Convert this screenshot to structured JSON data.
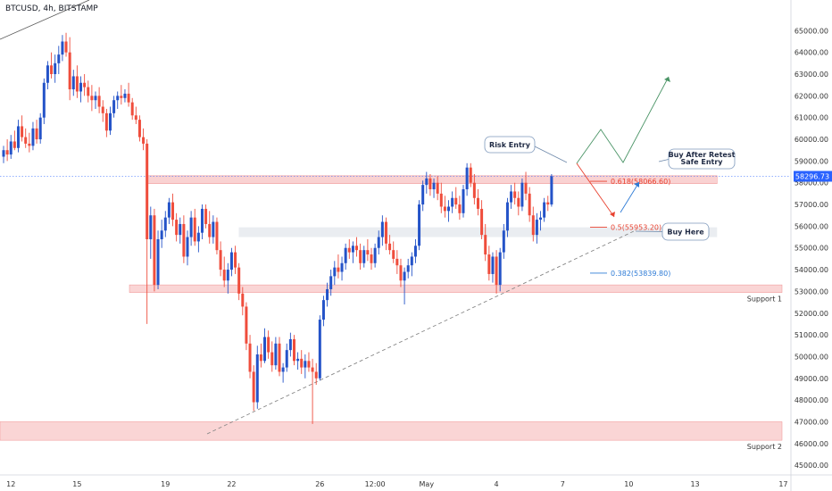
{
  "chart_data": {
    "type": "candlestick",
    "title": "BTCUSD, 4h, BITSTAMP",
    "ylim": [
      44800,
      66000
    ],
    "y_ticks": [
      45000,
      46000,
      47000,
      48000,
      49000,
      50000,
      51000,
      52000,
      53000,
      54000,
      55000,
      56000,
      57000,
      58000,
      59000,
      60000,
      61000,
      62000,
      63000,
      64000,
      65000
    ],
    "y_tick_labels": [
      "45000.00",
      "46000.00",
      "47000.00",
      "48000.00",
      "49000.00",
      "50000.00",
      "51000.00",
      "52000.00",
      "53000.00",
      "54000.00",
      "55000.00",
      "56000.00",
      "57000.00",
      "58000.00",
      "59000.00",
      "60000.00",
      "61000.00",
      "62000.00",
      "63000.00",
      "64000.00",
      "65000.00"
    ],
    "x_ticks": [
      {
        "label": "12",
        "bar": 2
      },
      {
        "label": "15",
        "bar": 20
      },
      {
        "label": "19",
        "bar": 44
      },
      {
        "label": "22",
        "bar": 62
      },
      {
        "label": "26",
        "bar": 86
      },
      {
        "label": "12:00",
        "bar": 101
      },
      {
        "label": "May",
        "bar": 115
      },
      {
        "label": "4",
        "bar": 134
      },
      {
        "label": "7",
        "bar": 152
      },
      {
        "label": "10",
        "bar": 170
      },
      {
        "label": "13",
        "bar": 188
      },
      {
        "label": "17",
        "bar": 212
      }
    ],
    "x_range": [
      0,
      220
    ],
    "current_price": {
      "value": 58296.73,
      "label": "58296.73"
    },
    "candles": [
      {
        "o": 59200,
        "h": 59700,
        "l": 58900,
        "c": 59500
      },
      {
        "o": 59500,
        "h": 60000,
        "l": 59000,
        "c": 59300
      },
      {
        "o": 59300,
        "h": 60200,
        "l": 59100,
        "c": 59900
      },
      {
        "o": 59900,
        "h": 60400,
        "l": 59500,
        "c": 59600
      },
      {
        "o": 59600,
        "h": 60900,
        "l": 59400,
        "c": 60600
      },
      {
        "o": 60600,
        "h": 61100,
        "l": 59900,
        "c": 60100
      },
      {
        "o": 60100,
        "h": 60500,
        "l": 59600,
        "c": 59800
      },
      {
        "o": 59800,
        "h": 60300,
        "l": 59400,
        "c": 59700
      },
      {
        "o": 59700,
        "h": 60800,
        "l": 59500,
        "c": 60500
      },
      {
        "o": 60500,
        "h": 60900,
        "l": 59800,
        "c": 60000
      },
      {
        "o": 60000,
        "h": 61200,
        "l": 59800,
        "c": 61000
      },
      {
        "o": 61000,
        "h": 62800,
        "l": 60700,
        "c": 62600
      },
      {
        "o": 62600,
        "h": 63600,
        "l": 62300,
        "c": 63400
      },
      {
        "o": 63400,
        "h": 64000,
        "l": 62800,
        "c": 63000
      },
      {
        "o": 63000,
        "h": 63900,
        "l": 62600,
        "c": 63500
      },
      {
        "o": 63500,
        "h": 64300,
        "l": 63000,
        "c": 63900
      },
      {
        "o": 63900,
        "h": 64800,
        "l": 63600,
        "c": 64500
      },
      {
        "o": 64500,
        "h": 64900,
        "l": 63800,
        "c": 64000
      },
      {
        "o": 64000,
        "h": 64700,
        "l": 61800,
        "c": 62300
      },
      {
        "o": 62300,
        "h": 63200,
        "l": 62000,
        "c": 62900
      },
      {
        "o": 62900,
        "h": 63400,
        "l": 61900,
        "c": 62200
      },
      {
        "o": 62200,
        "h": 62900,
        "l": 61700,
        "c": 62600
      },
      {
        "o": 62600,
        "h": 63000,
        "l": 62000,
        "c": 62400
      },
      {
        "o": 62400,
        "h": 62700,
        "l": 61700,
        "c": 62000
      },
      {
        "o": 62000,
        "h": 62500,
        "l": 61300,
        "c": 61800
      },
      {
        "o": 61800,
        "h": 62200,
        "l": 61400,
        "c": 62000
      },
      {
        "o": 62000,
        "h": 62400,
        "l": 61200,
        "c": 61500
      },
      {
        "o": 61500,
        "h": 61800,
        "l": 60800,
        "c": 61200
      },
      {
        "o": 61200,
        "h": 61400,
        "l": 60100,
        "c": 60400
      },
      {
        "o": 60400,
        "h": 61500,
        "l": 60200,
        "c": 61200
      },
      {
        "o": 61200,
        "h": 62000,
        "l": 61000,
        "c": 61800
      },
      {
        "o": 61800,
        "h": 62200,
        "l": 61400,
        "c": 62000
      },
      {
        "o": 62000,
        "h": 62500,
        "l": 61600,
        "c": 61900
      },
      {
        "o": 61900,
        "h": 62300,
        "l": 61700,
        "c": 62100
      },
      {
        "o": 62100,
        "h": 62600,
        "l": 61500,
        "c": 61700
      },
      {
        "o": 61700,
        "h": 61900,
        "l": 60900,
        "c": 61100
      },
      {
        "o": 61100,
        "h": 61500,
        "l": 60700,
        "c": 60900
      },
      {
        "o": 60900,
        "h": 61100,
        "l": 59900,
        "c": 60100
      },
      {
        "o": 60100,
        "h": 60500,
        "l": 59500,
        "c": 59800
      },
      {
        "o": 59800,
        "h": 60000,
        "l": 51500,
        "c": 55400
      },
      {
        "o": 55400,
        "h": 56900,
        "l": 54500,
        "c": 56500
      },
      {
        "o": 56500,
        "h": 56800,
        "l": 53000,
        "c": 53300
      },
      {
        "o": 53300,
        "h": 55800,
        "l": 53100,
        "c": 55400
      },
      {
        "o": 55400,
        "h": 56300,
        "l": 55000,
        "c": 55800
      },
      {
        "o": 55800,
        "h": 56700,
        "l": 55500,
        "c": 56400
      },
      {
        "o": 56400,
        "h": 57300,
        "l": 56100,
        "c": 57100
      },
      {
        "o": 57100,
        "h": 57500,
        "l": 56000,
        "c": 56300
      },
      {
        "o": 56300,
        "h": 56600,
        "l": 55300,
        "c": 55600
      },
      {
        "o": 55600,
        "h": 56400,
        "l": 55200,
        "c": 56100
      },
      {
        "o": 56100,
        "h": 56500,
        "l": 54300,
        "c": 54600
      },
      {
        "o": 54600,
        "h": 55800,
        "l": 54200,
        "c": 55500
      },
      {
        "o": 55500,
        "h": 56700,
        "l": 55100,
        "c": 56400
      },
      {
        "o": 56400,
        "h": 56800,
        "l": 55100,
        "c": 55300
      },
      {
        "o": 55300,
        "h": 56000,
        "l": 54800,
        "c": 55700
      },
      {
        "o": 55700,
        "h": 57000,
        "l": 55400,
        "c": 56800
      },
      {
        "o": 56800,
        "h": 57000,
        "l": 55900,
        "c": 56100
      },
      {
        "o": 56100,
        "h": 56700,
        "l": 55200,
        "c": 55500
      },
      {
        "o": 55500,
        "h": 56500,
        "l": 55200,
        "c": 56200
      },
      {
        "o": 56200,
        "h": 56400,
        "l": 54700,
        "c": 54900
      },
      {
        "o": 54900,
        "h": 55300,
        "l": 53700,
        "c": 54000
      },
      {
        "o": 54000,
        "h": 54600,
        "l": 53200,
        "c": 53500
      },
      {
        "o": 53500,
        "h": 54300,
        "l": 52900,
        "c": 54000
      },
      {
        "o": 54000,
        "h": 55000,
        "l": 53700,
        "c": 54800
      },
      {
        "o": 54800,
        "h": 55100,
        "l": 53800,
        "c": 54100
      },
      {
        "o": 54100,
        "h": 54300,
        "l": 52600,
        "c": 52900
      },
      {
        "o": 52900,
        "h": 53200,
        "l": 51900,
        "c": 52300
      },
      {
        "o": 52300,
        "h": 52500,
        "l": 50300,
        "c": 50600
      },
      {
        "o": 50600,
        "h": 51000,
        "l": 49000,
        "c": 49300
      },
      {
        "o": 49300,
        "h": 49600,
        "l": 47500,
        "c": 47900
      },
      {
        "o": 47900,
        "h": 50500,
        "l": 47600,
        "c": 50100
      },
      {
        "o": 50100,
        "h": 50600,
        "l": 49500,
        "c": 49800
      },
      {
        "o": 49800,
        "h": 51300,
        "l": 49700,
        "c": 50900
      },
      {
        "o": 50900,
        "h": 51200,
        "l": 49900,
        "c": 50200
      },
      {
        "o": 50200,
        "h": 50700,
        "l": 49300,
        "c": 49600
      },
      {
        "o": 49600,
        "h": 50900,
        "l": 49400,
        "c": 50600
      },
      {
        "o": 50600,
        "h": 50900,
        "l": 49100,
        "c": 49300
      },
      {
        "o": 49300,
        "h": 49700,
        "l": 48800,
        "c": 49500
      },
      {
        "o": 49500,
        "h": 50600,
        "l": 49300,
        "c": 50300
      },
      {
        "o": 50300,
        "h": 51100,
        "l": 50000,
        "c": 50800
      },
      {
        "o": 50800,
        "h": 51000,
        "l": 49600,
        "c": 49800
      },
      {
        "o": 49800,
        "h": 50200,
        "l": 49400,
        "c": 49900
      },
      {
        "o": 49900,
        "h": 50300,
        "l": 49200,
        "c": 49500
      },
      {
        "o": 49500,
        "h": 50100,
        "l": 49000,
        "c": 49800
      },
      {
        "o": 49800,
        "h": 50200,
        "l": 49300,
        "c": 49500
      },
      {
        "o": 49500,
        "h": 49900,
        "l": 46900,
        "c": 49300
      },
      {
        "o": 49300,
        "h": 49700,
        "l": 48700,
        "c": 49000
      },
      {
        "o": 49000,
        "h": 51900,
        "l": 48900,
        "c": 51700
      },
      {
        "o": 51700,
        "h": 52800,
        "l": 51400,
        "c": 52600
      },
      {
        "o": 52600,
        "h": 53400,
        "l": 52300,
        "c": 53100
      },
      {
        "o": 53100,
        "h": 54000,
        "l": 52800,
        "c": 53700
      },
      {
        "o": 53700,
        "h": 54400,
        "l": 53300,
        "c": 54100
      },
      {
        "o": 54100,
        "h": 54700,
        "l": 53600,
        "c": 53900
      },
      {
        "o": 53900,
        "h": 54600,
        "l": 53500,
        "c": 54300
      },
      {
        "o": 54300,
        "h": 55200,
        "l": 54000,
        "c": 55000
      },
      {
        "o": 55000,
        "h": 55400,
        "l": 54500,
        "c": 54800
      },
      {
        "o": 54800,
        "h": 55300,
        "l": 54300,
        "c": 55100
      },
      {
        "o": 55100,
        "h": 55500,
        "l": 54600,
        "c": 54900
      },
      {
        "o": 54900,
        "h": 55200,
        "l": 54000,
        "c": 54300
      },
      {
        "o": 54300,
        "h": 55100,
        "l": 54100,
        "c": 54900
      },
      {
        "o": 54900,
        "h": 55400,
        "l": 54400,
        "c": 54700
      },
      {
        "o": 54700,
        "h": 55000,
        "l": 54000,
        "c": 54300
      },
      {
        "o": 54300,
        "h": 55200,
        "l": 54100,
        "c": 55000
      },
      {
        "o": 55000,
        "h": 55800,
        "l": 54700,
        "c": 55500
      },
      {
        "o": 55500,
        "h": 56500,
        "l": 55100,
        "c": 56200
      },
      {
        "o": 56200,
        "h": 56400,
        "l": 54900,
        "c": 55200
      },
      {
        "o": 55200,
        "h": 55600,
        "l": 54700,
        "c": 54900
      },
      {
        "o": 54900,
        "h": 55300,
        "l": 54300,
        "c": 54500
      },
      {
        "o": 54500,
        "h": 54900,
        "l": 53800,
        "c": 54200
      },
      {
        "o": 54200,
        "h": 54500,
        "l": 53200,
        "c": 53500
      },
      {
        "o": 53500,
        "h": 54100,
        "l": 52400,
        "c": 53900
      },
      {
        "o": 53900,
        "h": 54500,
        "l": 53600,
        "c": 54200
      },
      {
        "o": 54200,
        "h": 54800,
        "l": 53700,
        "c": 54600
      },
      {
        "o": 54600,
        "h": 55400,
        "l": 54300,
        "c": 55100
      },
      {
        "o": 55100,
        "h": 57200,
        "l": 54900,
        "c": 57000
      },
      {
        "o": 57000,
        "h": 58100,
        "l": 56700,
        "c": 57900
      },
      {
        "o": 57900,
        "h": 58500,
        "l": 57500,
        "c": 58200
      },
      {
        "o": 58200,
        "h": 58400,
        "l": 57400,
        "c": 57700
      },
      {
        "o": 57700,
        "h": 58200,
        "l": 57300,
        "c": 58000
      },
      {
        "o": 58000,
        "h": 58300,
        "l": 57200,
        "c": 57500
      },
      {
        "o": 57500,
        "h": 58000,
        "l": 56600,
        "c": 56900
      },
      {
        "o": 56900,
        "h": 57400,
        "l": 56400,
        "c": 56700
      },
      {
        "o": 56700,
        "h": 57200,
        "l": 56200,
        "c": 56900
      },
      {
        "o": 56900,
        "h": 57600,
        "l": 56600,
        "c": 57300
      },
      {
        "o": 57300,
        "h": 57800,
        "l": 56800,
        "c": 57000
      },
      {
        "o": 57000,
        "h": 57400,
        "l": 56300,
        "c": 56600
      },
      {
        "o": 56600,
        "h": 57900,
        "l": 56400,
        "c": 57700
      },
      {
        "o": 57700,
        "h": 58900,
        "l": 57400,
        "c": 58700
      },
      {
        "o": 58700,
        "h": 58900,
        "l": 57800,
        "c": 58000
      },
      {
        "o": 58000,
        "h": 58400,
        "l": 57000,
        "c": 57300
      },
      {
        "o": 57300,
        "h": 57700,
        "l": 56500,
        "c": 56800
      },
      {
        "o": 56800,
        "h": 57200,
        "l": 55400,
        "c": 55600
      },
      {
        "o": 55600,
        "h": 56100,
        "l": 54400,
        "c": 54700
      },
      {
        "o": 54700,
        "h": 55100,
        "l": 53500,
        "c": 53800
      },
      {
        "o": 53800,
        "h": 54800,
        "l": 53400,
        "c": 54600
      },
      {
        "o": 54600,
        "h": 54900,
        "l": 52900,
        "c": 53300
      },
      {
        "o": 53300,
        "h": 55000,
        "l": 53000,
        "c": 54800
      },
      {
        "o": 54800,
        "h": 56100,
        "l": 54500,
        "c": 55800
      },
      {
        "o": 55800,
        "h": 57300,
        "l": 55500,
        "c": 57100
      },
      {
        "o": 57100,
        "h": 57900,
        "l": 56800,
        "c": 57600
      },
      {
        "o": 57600,
        "h": 58000,
        "l": 57000,
        "c": 57300
      },
      {
        "o": 57300,
        "h": 57600,
        "l": 56500,
        "c": 56900
      },
      {
        "o": 56900,
        "h": 58200,
        "l": 56700,
        "c": 58000
      },
      {
        "o": 58000,
        "h": 58500,
        "l": 57200,
        "c": 57500
      },
      {
        "o": 57500,
        "h": 57800,
        "l": 56200,
        "c": 56500
      },
      {
        "o": 56500,
        "h": 56900,
        "l": 55300,
        "c": 55600
      },
      {
        "o": 55600,
        "h": 56600,
        "l": 55200,
        "c": 56300
      },
      {
        "o": 56300,
        "h": 56700,
        "l": 55800,
        "c": 56400
      },
      {
        "o": 56400,
        "h": 57300,
        "l": 56200,
        "c": 57100
      },
      {
        "o": 57100,
        "h": 57400,
        "l": 56700,
        "c": 57000
      },
      {
        "o": 57000,
        "h": 58400,
        "l": 56900,
        "c": 58300
      }
    ],
    "annotations": {
      "resistance_zone": {
        "low": 58000,
        "high": 58200,
        "x_start": 38,
        "x_end": 194
      },
      "support_1": {
        "low": 52950,
        "high": 53300,
        "label": "Support 1"
      },
      "support_2": {
        "low": 46150,
        "high": 47000,
        "label": "Support 2"
      },
      "mid_zone": {
        "low": 55500,
        "high": 55950,
        "x_start": 62,
        "x_end": 194
      },
      "fib_levels": [
        {
          "label": "0.618(58066.60)",
          "value": 58066.6,
          "color": "#e8412f"
        },
        {
          "label": "0.5(55953.20)",
          "value": 55953.2,
          "color": "#e8412f"
        },
        {
          "label": "0.382(53839.80)",
          "value": 53839.8,
          "color": "#2e7bd6"
        }
      ],
      "boxes": [
        {
          "lines": [
            "Risk Entry"
          ]
        },
        {
          "lines": [
            "Buy After Retest",
            "Safe Entry"
          ]
        },
        {
          "lines": [
            "Buy Here"
          ]
        }
      ]
    }
  }
}
